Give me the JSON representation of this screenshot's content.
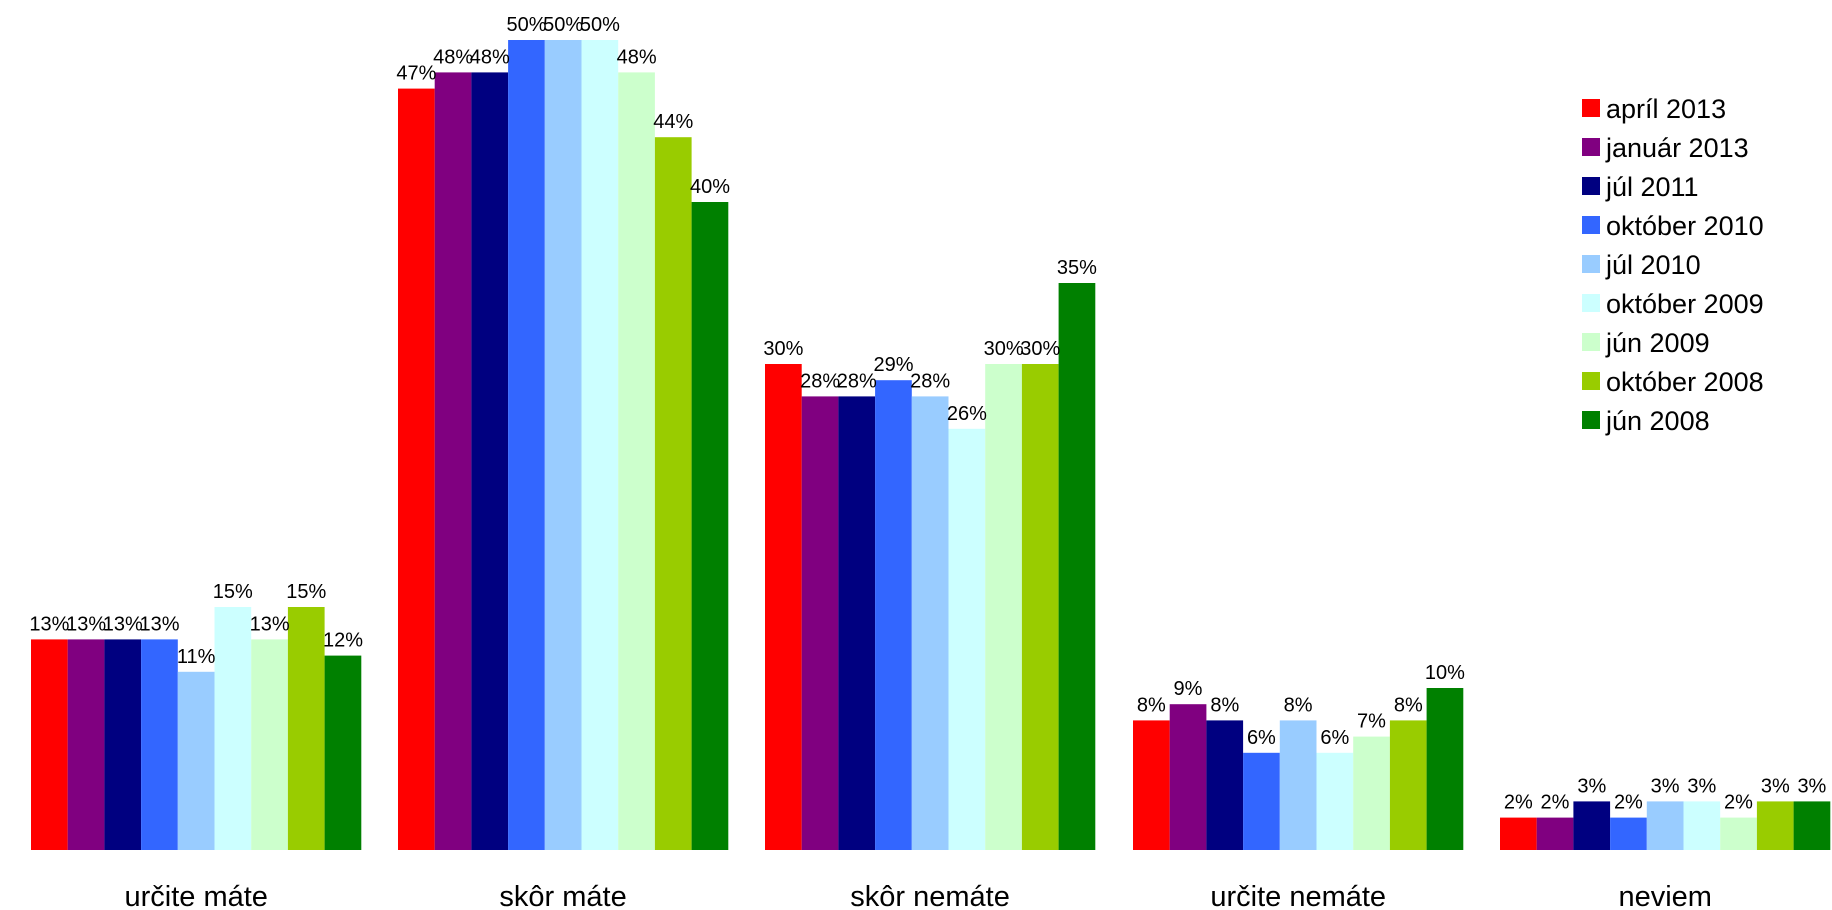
{
  "chart_data": {
    "type": "bar",
    "title": "",
    "xlabel": "",
    "ylabel": "",
    "ylim": [
      0,
      50
    ],
    "grid": false,
    "legend_position": "top-right",
    "categories": [
      "určite máte",
      "skôr máte",
      "skôr nemáte",
      "určite nemáte",
      "neviem"
    ],
    "value_format": "{v}%",
    "series": [
      {
        "name": "apríl 2013",
        "color": "#ff0000",
        "values": [
          13,
          47,
          30,
          8,
          2
        ]
      },
      {
        "name": "január 2013",
        "color": "#800080",
        "values": [
          13,
          48,
          28,
          9,
          2
        ]
      },
      {
        "name": "júl 2011",
        "color": "#000080",
        "values": [
          13,
          48,
          28,
          8,
          3
        ]
      },
      {
        "name": "október 2010",
        "color": "#3366ff",
        "values": [
          13,
          50,
          29,
          6,
          2
        ]
      },
      {
        "name": "júl 2010",
        "color": "#99ccff",
        "values": [
          11,
          50,
          28,
          8,
          3
        ]
      },
      {
        "name": "október 2009",
        "color": "#ccffff",
        "values": [
          15,
          50,
          26,
          6,
          3
        ]
      },
      {
        "name": "jún 2009",
        "color": "#ccffcc",
        "values": [
          13,
          48,
          30,
          7,
          2
        ]
      },
      {
        "name": "október 2008",
        "color": "#99cc00",
        "values": [
          15,
          44,
          30,
          8,
          3
        ]
      },
      {
        "name": "jún 2008",
        "color": "#008000",
        "values": [
          12,
          40,
          35,
          10,
          3
        ]
      }
    ]
  }
}
